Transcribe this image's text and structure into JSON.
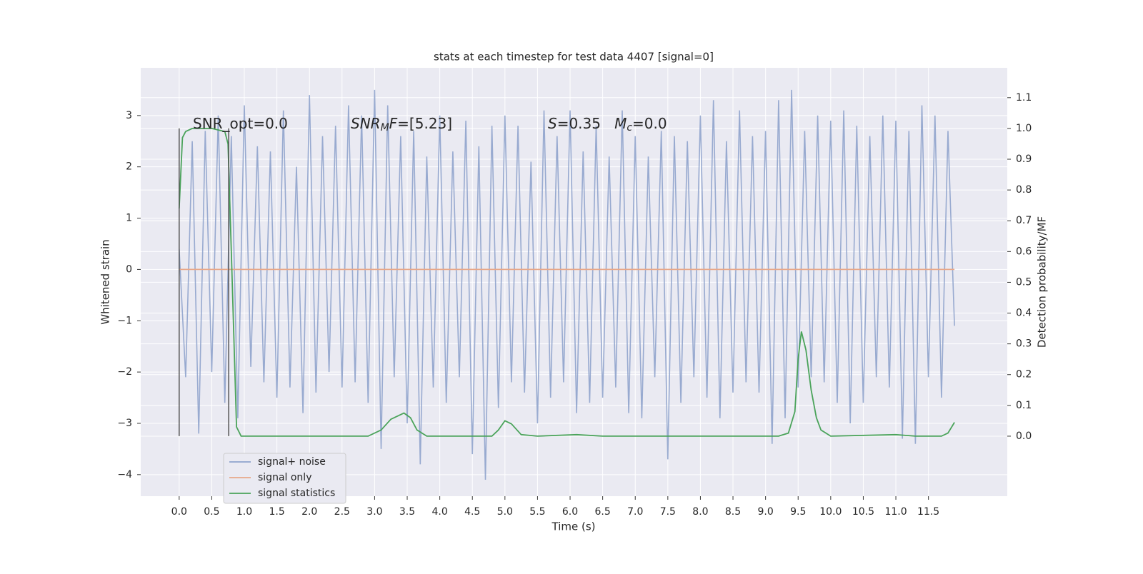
{
  "chart_data": {
    "type": "line",
    "title": "stats at each timestep for test data 4407 [signal=0]",
    "xlabel": "Time (s)",
    "ylabel": "Whitened strain",
    "y2label": "Detection probability/MF",
    "xlim": [
      -0.59,
      12.71
    ],
    "ylim": [
      -4.42,
      3.93
    ],
    "y2lim": [
      -0.195,
      1.197
    ],
    "xticks": [
      {
        "value": 0,
        "label": "0.0"
      },
      0.5,
      {
        "value": 1,
        "label": "1.0"
      },
      1.5,
      {
        "value": 2,
        "label": "2.0"
      },
      2.5,
      {
        "value": 3,
        "label": "3.0"
      },
      3.5,
      {
        "value": 4,
        "label": "4.0"
      },
      4.5,
      {
        "value": 5,
        "label": "5.0"
      },
      5.5,
      {
        "value": 6,
        "label": "6.0"
      },
      6.5,
      {
        "value": 7,
        "label": "7.0"
      },
      7.5,
      {
        "value": 8,
        "label": "8.0"
      },
      8.5,
      {
        "value": 9,
        "label": "9.0"
      },
      9.5,
      {
        "value": 10,
        "label": "10.0"
      },
      10.5,
      {
        "value": 11,
        "label": "11.0"
      },
      11.5
    ],
    "yticks": [
      {
        "value": -4,
        "label": "−4"
      },
      {
        "value": -3,
        "label": "−3"
      },
      {
        "value": -2,
        "label": "−2"
      },
      {
        "value": -1,
        "label": "−1"
      },
      0,
      1,
      2,
      3
    ],
    "y2ticks": [
      {
        "value": 0,
        "label": "0.0"
      },
      0.1,
      0.2,
      0.3,
      0.4,
      0.5,
      0.6,
      0.7,
      0.8,
      0.9,
      {
        "value": 1,
        "label": "1.0"
      },
      1.1
    ],
    "grid": true,
    "legend": "lower left",
    "vlines": {
      "x": [
        0,
        0.76
      ],
      "ymin": -3.25,
      "ymax": 2.75,
      "color": "#555555"
    },
    "annotations": [
      [
        {
          "text": "SNR_opt=0.0",
          "style": "normal"
        }
      ],
      [
        {
          "text": "SNR",
          "style": "italic"
        },
        {
          "text": "M",
          "style": "italic-sub"
        },
        {
          "text": "F",
          "style": "italic"
        },
        {
          "text": "=[5.23]",
          "style": "normal"
        }
      ],
      [
        {
          "text": "S",
          "style": "italic"
        },
        {
          "text": "=0.35   ",
          "style": "normal"
        },
        {
          "text": "M",
          "style": "italic"
        },
        {
          "text": "c",
          "style": "italic-sub"
        },
        {
          "text": "=0.0",
          "style": "normal"
        }
      ]
    ],
    "series": [
      {
        "name": "signal+ noise",
        "color": "#8fa3cc",
        "axis": "y",
        "x": [
          0.0,
          0.1,
          0.2,
          0.3,
          0.4,
          0.5,
          0.6,
          0.7,
          0.8,
          0.9,
          1.0,
          1.1,
          1.2,
          1.3,
          1.4,
          1.5,
          1.6,
          1.7,
          1.8,
          1.9,
          2.0,
          2.1,
          2.2,
          2.3,
          2.4,
          2.5,
          2.6,
          2.7,
          2.8,
          2.9,
          3.0,
          3.1,
          3.2,
          3.3,
          3.4,
          3.5,
          3.6,
          3.7,
          3.8,
          3.9,
          4.0,
          4.1,
          4.2,
          4.3,
          4.4,
          4.5,
          4.6,
          4.7,
          4.8,
          4.9,
          5.0,
          5.1,
          5.2,
          5.3,
          5.4,
          5.5,
          5.6,
          5.7,
          5.8,
          5.9,
          6.0,
          6.1,
          6.2,
          6.3,
          6.4,
          6.5,
          6.6,
          6.7,
          6.8,
          6.9,
          7.0,
          7.1,
          7.2,
          7.3,
          7.4,
          7.5,
          7.6,
          7.7,
          7.8,
          7.9,
          8.0,
          8.1,
          8.2,
          8.3,
          8.4,
          8.5,
          8.6,
          8.7,
          8.8,
          8.9,
          9.0,
          9.1,
          9.2,
          9.3,
          9.4,
          9.5,
          9.6,
          9.7,
          9.8,
          9.9,
          10.0,
          10.1,
          10.2,
          10.3,
          10.4,
          10.5,
          10.6,
          10.7,
          10.8,
          10.9,
          11.0,
          11.1,
          11.2,
          11.3,
          11.4,
          11.5,
          11.6,
          11.7,
          11.8,
          11.9
        ],
        "values": [
          0.4,
          -2.1,
          2.5,
          -3.2,
          2.7,
          -2.0,
          3.0,
          -2.6,
          2.6,
          -2.9,
          3.2,
          -1.9,
          2.4,
          -2.2,
          2.3,
          -2.5,
          3.1,
          -2.3,
          2.0,
          -2.8,
          3.4,
          -2.4,
          2.6,
          -2.0,
          2.8,
          -2.3,
          3.2,
          -2.2,
          3.0,
          -2.6,
          3.5,
          -3.5,
          3.2,
          -2.1,
          2.6,
          -3.0,
          2.7,
          -3.8,
          2.2,
          -2.3,
          3.0,
          -2.6,
          2.3,
          -2.1,
          2.9,
          -3.6,
          2.4,
          -4.1,
          2.8,
          -2.7,
          3.0,
          -2.2,
          2.8,
          -2.4,
          2.1,
          -3.0,
          3.1,
          -2.5,
          2.6,
          -2.2,
          3.1,
          -2.8,
          2.3,
          -2.6,
          2.8,
          -2.5,
          2.2,
          -2.3,
          3.1,
          -2.8,
          2.6,
          -2.9,
          2.2,
          -2.1,
          2.7,
          -3.7,
          2.6,
          -2.6,
          2.5,
          -2.1,
          3.0,
          -2.5,
          3.3,
          -2.9,
          2.5,
          -2.4,
          3.1,
          -2.2,
          2.6,
          -2.4,
          2.7,
          -3.4,
          3.3,
          -2.9,
          3.5,
          -2.3,
          2.7,
          -2.1,
          3.0,
          -2.2,
          2.9,
          -2.6,
          3.1,
          -3.0,
          2.8,
          -2.6,
          2.6,
          -2.1,
          3.0,
          -2.3,
          2.9,
          -3.3,
          2.7,
          -3.4,
          3.2,
          -2.1,
          3.0,
          -2.5,
          2.7,
          -1.1
        ]
      },
      {
        "name": "signal only",
        "color": "#e8a889",
        "axis": "y",
        "x": [
          0,
          11.9
        ],
        "values": [
          0,
          0
        ]
      },
      {
        "name": "signal statistics",
        "color": "#4aa35a",
        "axis": "y2",
        "x": [
          0,
          0.05,
          0.1,
          0.2,
          0.5,
          0.7,
          0.75,
          0.8,
          0.88,
          0.95,
          1.5,
          2.5,
          2.9,
          3.1,
          3.25,
          3.45,
          3.55,
          3.65,
          3.8,
          4.3,
          4.8,
          4.9,
          5.0,
          5.1,
          5.25,
          5.5,
          6.1,
          6.5,
          9.2,
          9.35,
          9.45,
          9.5,
          9.55,
          9.62,
          9.7,
          9.78,
          9.85,
          10.0,
          11.0,
          11.3,
          11.7,
          11.8,
          11.9
        ],
        "values": [
          0.74,
          0.97,
          0.99,
          1.0,
          1.0,
          0.99,
          0.95,
          0.6,
          0.03,
          0.0,
          0.0,
          0.0,
          0.0,
          0.02,
          0.055,
          0.075,
          0.06,
          0.02,
          0.0,
          0.0,
          0.0,
          0.02,
          0.05,
          0.04,
          0.005,
          0.0,
          0.005,
          0.0,
          0.0,
          0.01,
          0.08,
          0.25,
          0.34,
          0.28,
          0.15,
          0.06,
          0.02,
          0.0,
          0.005,
          0.0,
          0.0,
          0.01,
          0.045
        ]
      }
    ]
  }
}
